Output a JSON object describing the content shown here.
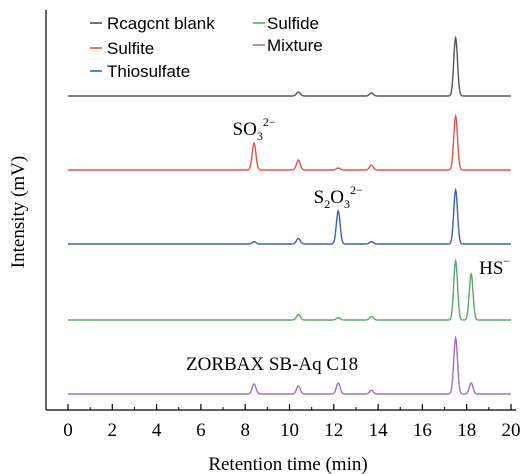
{
  "chart_data": {
    "type": "line",
    "xlabel": "Retention time (min)",
    "ylabel": "Intensity (mV)",
    "xlim": [
      -1.0,
      20.0
    ],
    "x_ticks": [
      0,
      2,
      4,
      6,
      8,
      10,
      12,
      14,
      16,
      18,
      20
    ],
    "y_ticks_shown": false,
    "grid": false,
    "legend_position": "top-left",
    "legend": [
      "Rcagcnt blank",
      "Sulfite",
      "Thiosulfate",
      "Sulfide",
      "Mixture"
    ],
    "series": [
      {
        "name": "Rcagcnt blank",
        "color": "#555555",
        "baseline": 0,
        "peaks": [
          {
            "x": 10.4,
            "height": 0.2
          },
          {
            "x": 13.7,
            "height": 0.15
          },
          {
            "x": 17.5,
            "height": 2.9
          }
        ]
      },
      {
        "name": "Sulfite",
        "color": "#e8504f",
        "baseline": 0,
        "peaks": [
          {
            "x": 8.4,
            "height": 1.35
          },
          {
            "x": 10.4,
            "height": 0.5
          },
          {
            "x": 12.2,
            "height": 0.1
          },
          {
            "x": 13.7,
            "height": 0.25
          },
          {
            "x": 17.5,
            "height": 2.7
          }
        ]
      },
      {
        "name": "Thiosulfate",
        "color": "#3a5fbf",
        "baseline": 0,
        "peaks": [
          {
            "x": 8.4,
            "height": 0.12
          },
          {
            "x": 10.4,
            "height": 0.28
          },
          {
            "x": 12.2,
            "height": 1.65
          },
          {
            "x": 13.7,
            "height": 0.12
          },
          {
            "x": 17.5,
            "height": 2.7
          }
        ]
      },
      {
        "name": "Sulfide",
        "color": "#5aa867",
        "baseline": 0,
        "peaks": [
          {
            "x": 10.4,
            "height": 0.28
          },
          {
            "x": 12.2,
            "height": 0.12
          },
          {
            "x": 13.7,
            "height": 0.18
          },
          {
            "x": 17.5,
            "height": 2.95
          },
          {
            "x": 18.2,
            "height": 2.3
          }
        ]
      },
      {
        "name": "Mixture",
        "color": "#a070c0",
        "baseline": 0,
        "peaks": [
          {
            "x": 8.4,
            "height": 0.5
          },
          {
            "x": 10.4,
            "height": 0.4
          },
          {
            "x": 12.2,
            "height": 0.55
          },
          {
            "x": 13.7,
            "height": 0.18
          },
          {
            "x": 17.5,
            "height": 2.8
          },
          {
            "x": 18.2,
            "height": 0.55
          }
        ]
      }
    ],
    "annotations": [
      {
        "series": "Sulfite",
        "x": 8.4,
        "parts": [
          "SO",
          "3",
          "2−"
        ]
      },
      {
        "series": "Thiosulfate",
        "x": 12.2,
        "parts": [
          "S",
          "2",
          "O",
          "3",
          "2−"
        ]
      },
      {
        "series": "Sulfide",
        "x": 18.2,
        "parts": [
          "HS",
          "",
          "−"
        ]
      },
      {
        "series": "Mixture",
        "text": "ZORBAX SB-Aq C18"
      }
    ]
  }
}
